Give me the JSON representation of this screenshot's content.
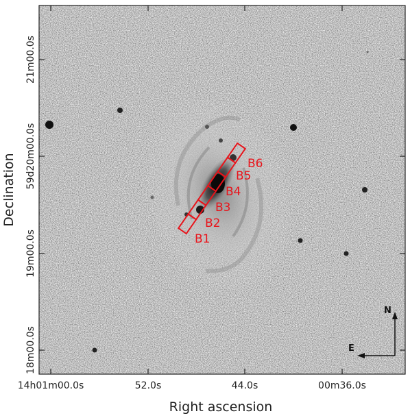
{
  "x_axis": {
    "label": "Right ascension",
    "ticks": [
      "14h01m00.0s",
      "52.0s",
      "44.0s",
      "00m36.0s"
    ]
  },
  "y_axis": {
    "label": "Declination",
    "ticks": [
      "18m00.0s",
      "19m00.0s",
      "59d20m00.0s",
      "21m00.0s"
    ]
  },
  "slit": {
    "color": "#e8141b",
    "boxes": [
      "B1",
      "B2",
      "B3",
      "B4",
      "B5",
      "B6"
    ]
  },
  "compass": {
    "north": "N",
    "east": "E"
  }
}
